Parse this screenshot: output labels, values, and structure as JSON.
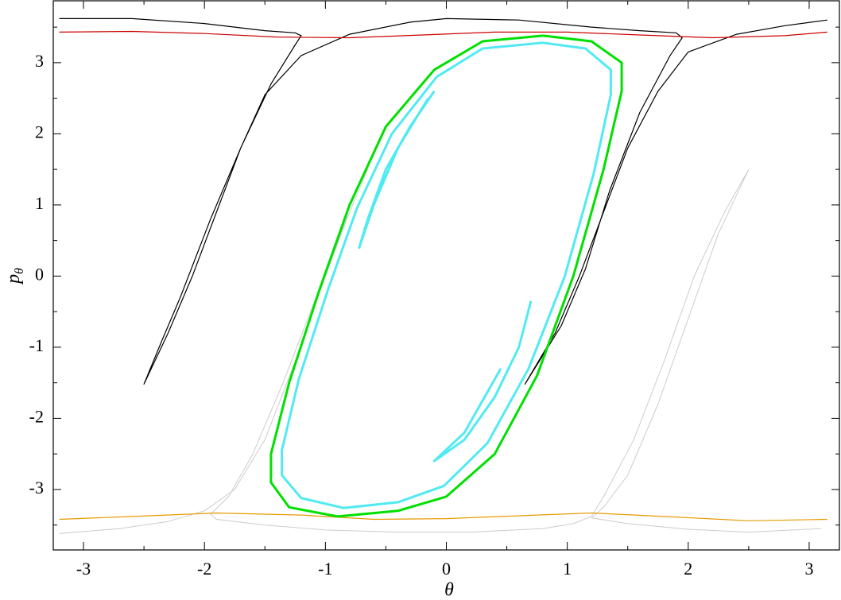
{
  "chart_data": {
    "type": "line",
    "x_label": "θ",
    "y_label": {
      "text": "p",
      "subscript": "θ"
    },
    "xlim": [
      -3.25,
      3.25
    ],
    "ylim": [
      -3.85,
      3.87
    ],
    "xticks": [
      -3,
      -2,
      -1,
      0,
      1,
      2,
      3
    ],
    "yticks": [
      -3,
      -2,
      -1,
      0,
      1,
      2,
      3
    ],
    "xminor": [
      -2.5,
      -1.5,
      -0.5,
      0.5,
      1.5,
      2.5
    ],
    "yminor": [
      -3.5,
      -2.5,
      -1.5,
      -0.5,
      0.5,
      1.5,
      2.5,
      3.5
    ],
    "series": [
      {
        "color": "#cccccc",
        "x": [
          -3.2,
          -2.7,
          -2.3,
          -2.0,
          -1.75,
          -1.5,
          -1.25,
          -1.0,
          -0.8,
          -0.65,
          null,
          -0.65,
          -0.85,
          -1.1,
          -1.35,
          -1.6,
          -1.8,
          -1.95,
          -1.9,
          -1.5,
          -1.0,
          -0.4,
          0.2,
          0.8,
          1.05,
          1.2,
          1.3,
          1.55,
          1.8,
          2.05,
          2.3,
          2.5,
          null,
          2.5,
          2.25,
          2.0,
          1.75,
          1.5,
          1.3,
          1.2,
          1.5,
          2.0,
          2.5,
          3.1
        ],
        "y": [
          -3.62,
          -3.55,
          -3.45,
          -3.3,
          -3.0,
          -2.3,
          -1.2,
          0.0,
          0.9,
          1.5,
          null,
          1.5,
          0.7,
          -0.4,
          -1.5,
          -2.5,
          -3.1,
          -3.35,
          -3.42,
          -3.5,
          -3.57,
          -3.6,
          -3.6,
          -3.55,
          -3.48,
          -3.38,
          -3.1,
          -2.3,
          -1.2,
          0.0,
          0.9,
          1.5,
          null,
          1.5,
          0.6,
          -0.6,
          -1.8,
          -2.8,
          -3.25,
          -3.4,
          -3.48,
          -3.56,
          -3.6,
          -3.55
        ]
      },
      {
        "color": "#000000",
        "x": [
          -3.2,
          -2.6,
          -2.0,
          -1.5,
          -1.25,
          -1.2,
          -1.25,
          -1.45,
          -1.7,
          -1.95,
          -2.2,
          -2.35,
          -2.5,
          -2.3,
          -2.1,
          -1.9,
          -1.7,
          -1.5,
          -1.2,
          -0.8,
          -0.3,
          0.0,
          0.6,
          1.2,
          1.6,
          1.9,
          1.95,
          1.85,
          1.6,
          1.35,
          1.15,
          0.95,
          0.65,
          0.9,
          1.1,
          1.3,
          1.5,
          1.75,
          2.0,
          2.4,
          2.8,
          3.15
        ],
        "y": [
          3.62,
          3.62,
          3.55,
          3.45,
          3.42,
          3.38,
          3.25,
          2.7,
          1.8,
          0.8,
          -0.3,
          -0.9,
          -1.52,
          -0.8,
          0.0,
          0.9,
          1.8,
          2.55,
          3.1,
          3.4,
          3.57,
          3.62,
          3.6,
          3.5,
          3.45,
          3.42,
          3.35,
          3.1,
          2.3,
          1.2,
          0.1,
          -0.7,
          -1.52,
          -0.8,
          0.0,
          0.9,
          1.8,
          2.6,
          3.15,
          3.4,
          3.52,
          3.6
        ]
      },
      {
        "color": "#cc0000",
        "x": [
          -3.2,
          -2.6,
          -2.0,
          -1.4,
          -0.8,
          -0.2,
          0.4,
          1.0,
          1.6,
          2.2,
          2.8,
          3.15
        ],
        "y": [
          3.43,
          3.44,
          3.41,
          3.36,
          3.35,
          3.39,
          3.43,
          3.43,
          3.39,
          3.35,
          3.38,
          3.43
        ]
      },
      {
        "color": "#e69a00",
        "x": [
          -3.2,
          -2.6,
          -1.9,
          -1.2,
          -0.6,
          0.0,
          0.6,
          1.2,
          1.8,
          2.5,
          3.15
        ],
        "y": [
          -3.42,
          -3.38,
          -3.33,
          -3.36,
          -3.42,
          -3.41,
          -3.37,
          -3.33,
          -3.38,
          -3.44,
          -3.42
        ]
      },
      {
        "color": "#00e000",
        "x": [
          0.8,
          1.2,
          1.45,
          1.45,
          1.3,
          1.05,
          0.75,
          0.4,
          0.0,
          -0.4,
          -0.9,
          -1.3,
          -1.45,
          -1.45,
          -1.3,
          -1.05,
          -0.8,
          -0.5,
          -0.1,
          0.3,
          0.8
        ],
        "y": [
          3.38,
          3.3,
          3.0,
          2.6,
          1.5,
          0.0,
          -1.4,
          -2.5,
          -3.1,
          -3.3,
          -3.38,
          -3.25,
          -2.9,
          -2.5,
          -1.5,
          -0.2,
          1.0,
          2.1,
          2.9,
          3.3,
          3.38
        ]
      },
      {
        "color": "#33e6f0",
        "x": [
          0.8,
          1.15,
          1.36,
          1.36,
          1.22,
          0.98,
          0.68,
          0.34,
          -0.02,
          -0.4,
          -0.85,
          -1.2,
          -1.36,
          -1.36,
          -1.22,
          -0.98,
          -0.74,
          -0.45,
          -0.08,
          0.3,
          0.8,
          null,
          -0.15,
          -0.4,
          -0.6,
          -0.72,
          -0.65,
          -0.5,
          -0.3,
          -0.1,
          null,
          0.7,
          0.6,
          0.4,
          0.15,
          -0.1,
          0.15,
          0.45
        ],
        "y": [
          3.28,
          3.2,
          2.9,
          2.55,
          1.45,
          0.0,
          -1.3,
          -2.35,
          -2.95,
          -3.18,
          -3.26,
          -3.12,
          -2.8,
          -2.45,
          -1.45,
          -0.2,
          0.95,
          2.0,
          2.8,
          3.2,
          3.28,
          null,
          2.5,
          1.8,
          1.0,
          0.4,
          0.8,
          1.5,
          2.1,
          2.6,
          null,
          -0.35,
          -1.0,
          -1.7,
          -2.3,
          -2.6,
          -2.2,
          -1.3
        ]
      }
    ]
  }
}
